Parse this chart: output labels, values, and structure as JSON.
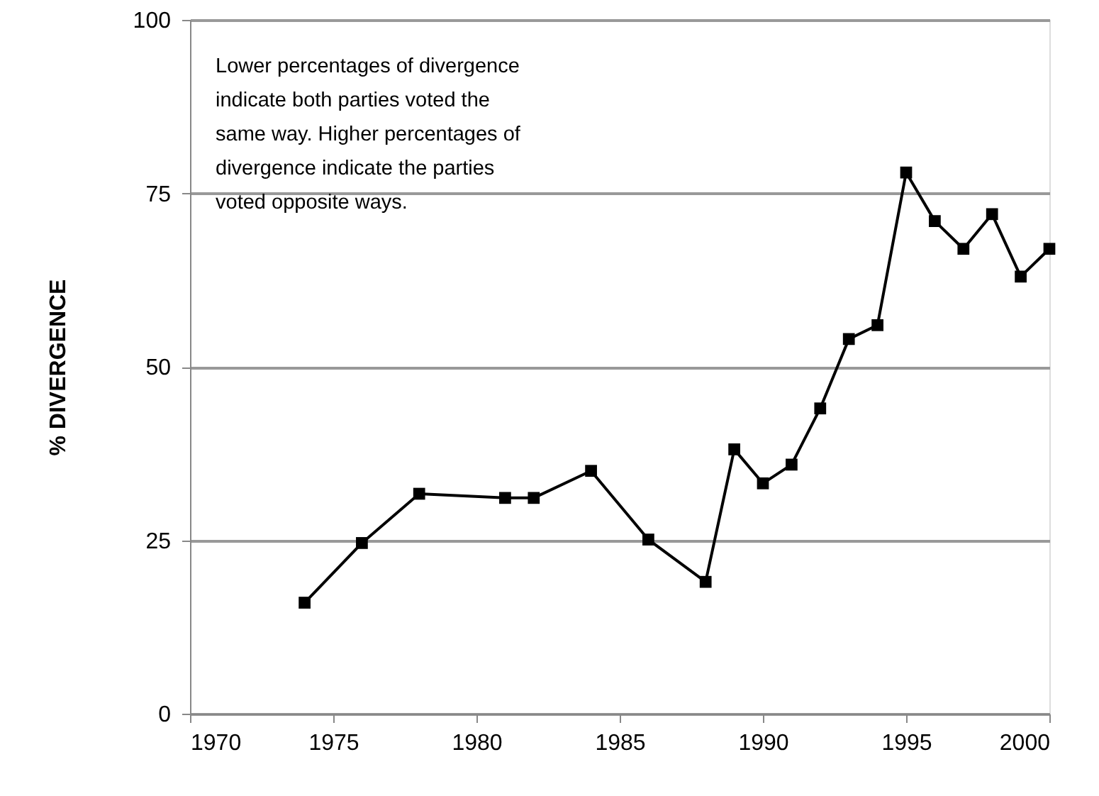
{
  "chart_data": {
    "type": "line",
    "ylabel": "% DIVERGENCE",
    "x": [
      1974,
      1976,
      1978,
      1981,
      1982,
      1984,
      1986,
      1988,
      1989,
      1990,
      1991,
      1992,
      1993,
      1994,
      1995,
      1996,
      1997,
      1998,
      1999,
      2000
    ],
    "series": [
      {
        "color": "#000000",
        "values": [
          16,
          24.6,
          31.7,
          31.1,
          31.1,
          35,
          25.1,
          19,
          38.1,
          33.2,
          35.9,
          44,
          54,
          56,
          78,
          71,
          67,
          72,
          63,
          67
        ]
      }
    ],
    "xlim": [
      1970,
      2000
    ],
    "xticks": [
      1970,
      1975,
      1980,
      1985,
      1990,
      1995,
      2000
    ],
    "ylim": [
      0,
      100
    ],
    "yticks": [
      0,
      25,
      50,
      75,
      100
    ],
    "grid": "y",
    "marker": "square",
    "line_style": "solid",
    "annotations": [
      "Lower percentages of divergence\nindicate both parties voted the\nsame way.  Higher percentages of\ndivergence indicate the parties\nvoted opposite ways."
    ]
  }
}
